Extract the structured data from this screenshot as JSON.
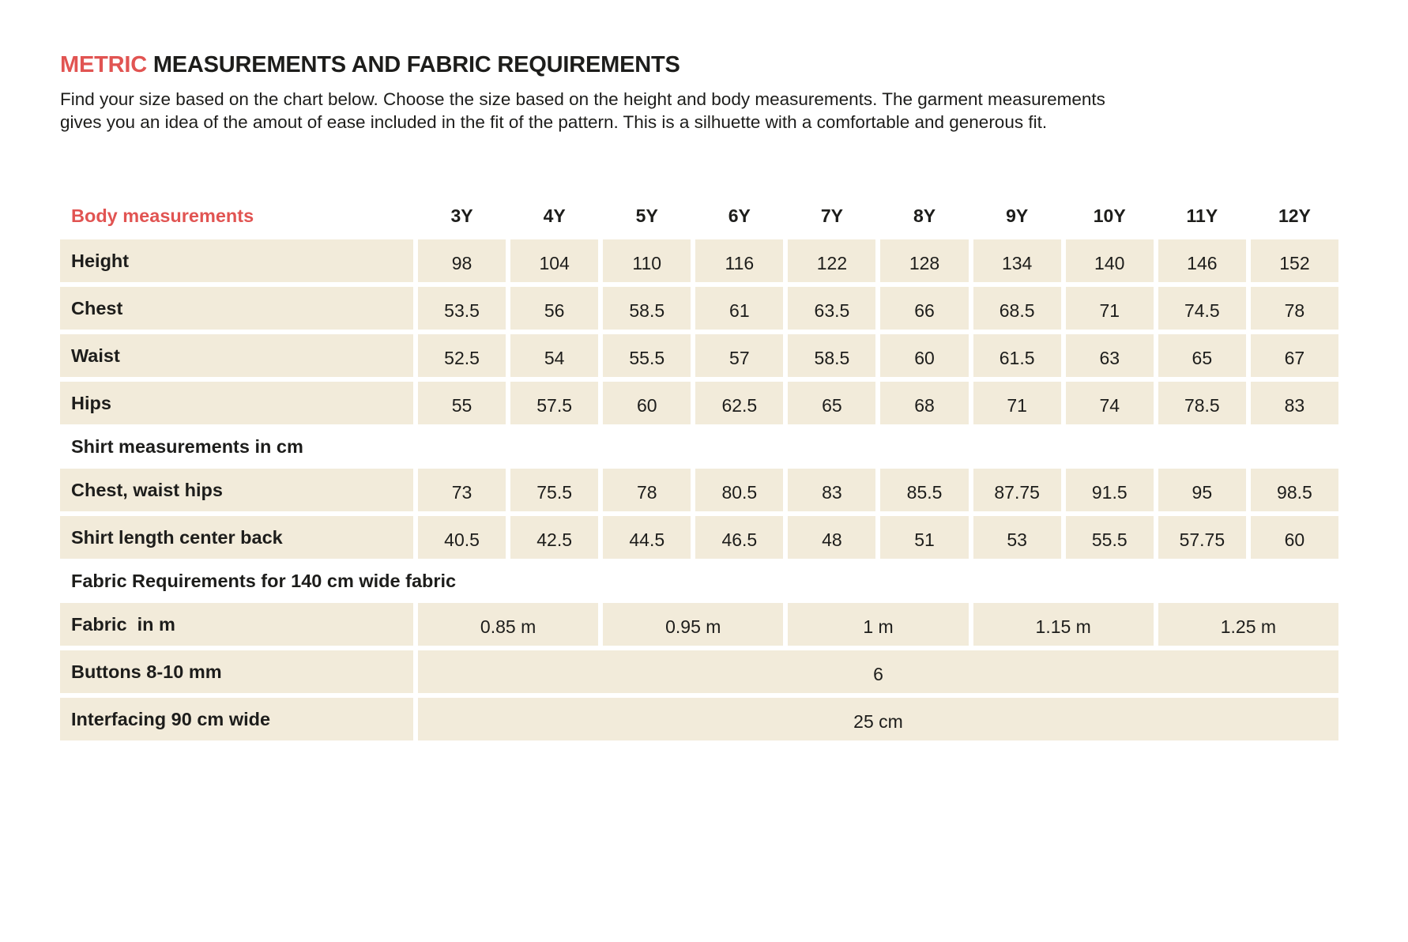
{
  "page": {
    "title_accent": "METRIC",
    "title_rest": " MEASUREMENTS AND FABRIC REQUIREMENTS",
    "description_line1": "Find your size based on the chart below. Choose the size based on the height and body measurements. The garment measurements",
    "description_line2": "gives you an idea of the amout of ease included in the fit of the pattern. This is a silhuette with a comfortable and generous fit."
  },
  "colors": {
    "accent": "#e15452",
    "cell_background": "#f2ebda",
    "text": "#1d1d1b"
  },
  "table": {
    "header_label": "Body measurements",
    "sizes": [
      "3Y",
      "4Y",
      "5Y",
      "6Y",
      "7Y",
      "8Y",
      "9Y",
      "10Y",
      "11Y",
      "12Y"
    ],
    "body_rows": [
      {
        "label": "Height",
        "values": [
          "98",
          "104",
          "110",
          "116",
          "122",
          "128",
          "134",
          "140",
          "146",
          "152"
        ]
      },
      {
        "label": "Chest",
        "values": [
          "53.5",
          "56",
          "58.5",
          "61",
          "63.5",
          "66",
          "68.5",
          "71",
          "74.5",
          "78"
        ]
      },
      {
        "label": "Waist",
        "values": [
          "52.5",
          "54",
          "55.5",
          "57",
          "58.5",
          "60",
          "61.5",
          "63",
          "65",
          "67"
        ]
      },
      {
        "label": "Hips",
        "values": [
          "55",
          "57.5",
          "60",
          "62.5",
          "65",
          "68",
          "71",
          "74",
          "78.5",
          "83"
        ]
      }
    ],
    "shirt_section_label": "Shirt measurements in cm",
    "shirt_rows": [
      {
        "label": "Chest, waist hips",
        "values": [
          "73",
          "75.5",
          "78",
          "80.5",
          "83",
          "85.5",
          "87.75",
          "91.5",
          "95",
          "98.5"
        ]
      },
      {
        "label": "Shirt length center back",
        "values": [
          "40.5",
          "42.5",
          "44.5",
          "46.5",
          "48",
          "51",
          "53",
          "55.5",
          "57.75",
          "60"
        ]
      }
    ],
    "fabric_section_label": "Fabric Requirements for 140 cm wide fabric",
    "fabric_rows": [
      {
        "label": "Fabric  in m",
        "cells": [
          {
            "value": "0.85 m",
            "span": 2
          },
          {
            "value": "0.95 m",
            "span": 2
          },
          {
            "value": "1 m",
            "span": 2
          },
          {
            "value": "1.15 m",
            "span": 2
          },
          {
            "value": "1.25 m",
            "span": 2
          }
        ]
      },
      {
        "label": "Buttons 8-10 mm",
        "cells": [
          {
            "value": "6",
            "span": 10
          }
        ]
      },
      {
        "label": "Interfacing 90 cm wide",
        "cells": [
          {
            "value": "25 cm",
            "span": 10
          }
        ]
      }
    ]
  }
}
